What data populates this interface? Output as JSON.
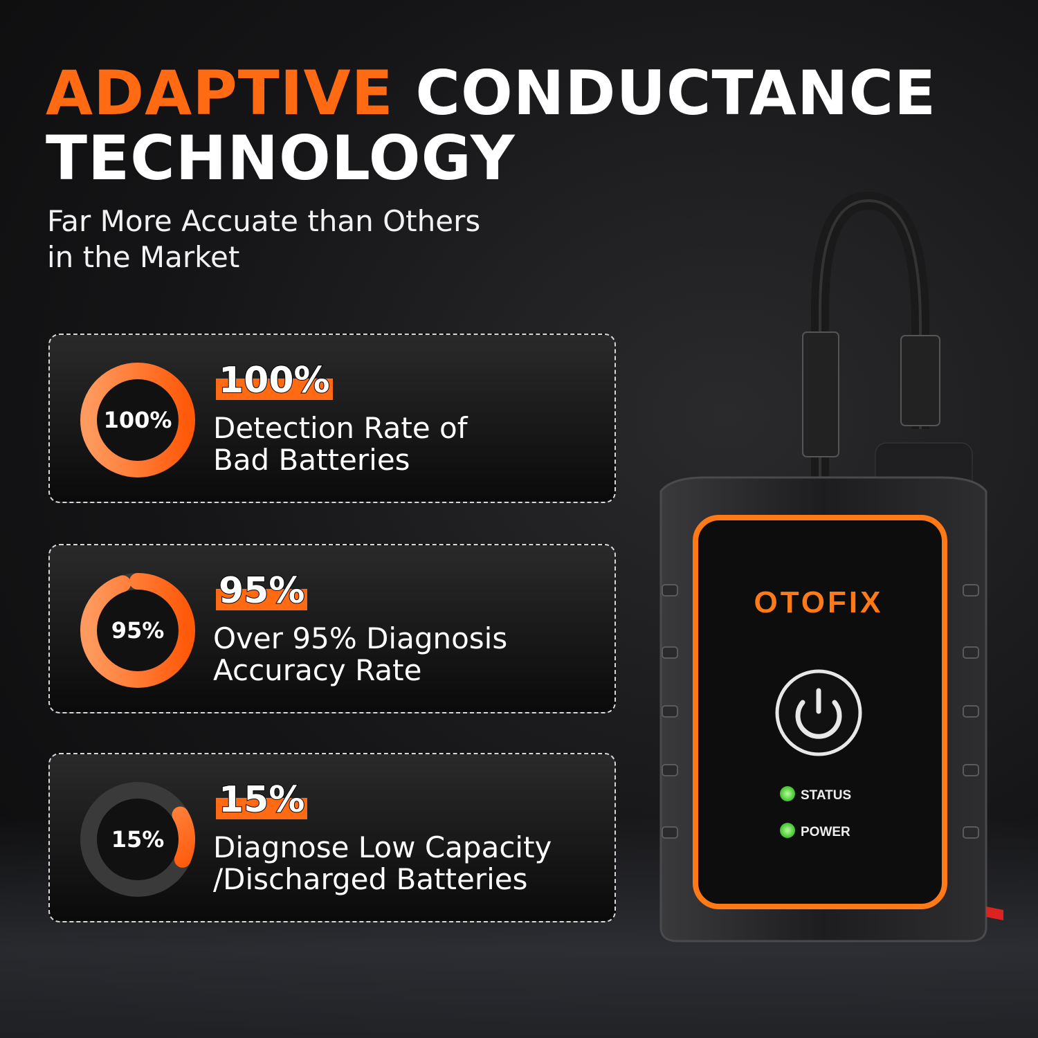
{
  "headline": {
    "highlight": "ADAPTIVE",
    "rest_line1": "CONDUCTANCE",
    "line2": "TECHNOLOGY"
  },
  "subtitle": {
    "line1": "Far More Accuate than Others",
    "line2": "in the Market"
  },
  "colors": {
    "accent": "#ff6a13",
    "led": "#5ee04a",
    "background": "#151517"
  },
  "stats": [
    {
      "ring_label": "100%",
      "percent": 100,
      "headline": "100%",
      "desc_line1": "Detection Rate of",
      "desc_line2": "Bad Batteries"
    },
    {
      "ring_label": "95%",
      "percent": 95,
      "headline": "95%",
      "desc_line1": "Over 95% Diagnosis",
      "desc_line2": "Accuracy Rate"
    },
    {
      "ring_label": "15%",
      "percent": 15,
      "headline": "15%",
      "desc_line1": "Diagnose Low Capacity",
      "desc_line2": "/Discharged Batteries"
    }
  ],
  "device": {
    "brand": "OTOFIX",
    "led_status": "STATUS",
    "led_power": "POWER",
    "button_icon": "power-icon"
  }
}
